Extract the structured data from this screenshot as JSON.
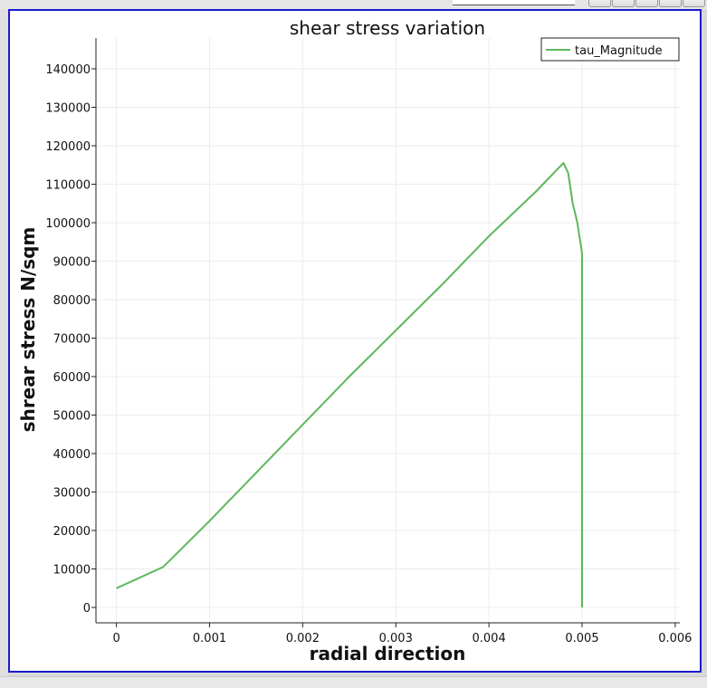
{
  "chart_data": {
    "type": "line",
    "title": "shear stress variation",
    "xlabel": "radial direction",
    "ylabel": "shrear stress N/sqm",
    "xlim": [
      -0.00022,
      0.00605
    ],
    "ylim": [
      -4000,
      148000
    ],
    "xticks": [
      0,
      0.001,
      0.002,
      0.003,
      0.004,
      0.005,
      0.006
    ],
    "xtick_labels": [
      "0",
      "0.001",
      "0.002",
      "0.003",
      "0.004",
      "0.005",
      "0.006"
    ],
    "yticks": [
      0,
      10000,
      20000,
      30000,
      40000,
      50000,
      60000,
      70000,
      80000,
      90000,
      100000,
      110000,
      120000,
      130000,
      140000
    ],
    "ytick_labels": [
      "0",
      "10000",
      "20000",
      "30000",
      "40000",
      "50000",
      "60000",
      "70000",
      "80000",
      "90000",
      "100000",
      "110000",
      "120000",
      "130000",
      "140000"
    ],
    "grid": true,
    "legend_position": "top-right",
    "series": [
      {
        "name": "tau_Magnitude",
        "color": "#5cb85c",
        "x": [
          0,
          0.0005,
          0.001,
          0.0015,
          0.002,
          0.0025,
          0.003,
          0.0035,
          0.004,
          0.0045,
          0.0048,
          0.00485,
          0.0049,
          0.00495,
          0.005,
          0.005
        ],
        "y": [
          5000,
          10500,
          22500,
          35000,
          47500,
          60000,
          72000,
          84000,
          96500,
          108000,
          115500,
          113000,
          105000,
          100000,
          92000,
          0
        ]
      }
    ]
  }
}
